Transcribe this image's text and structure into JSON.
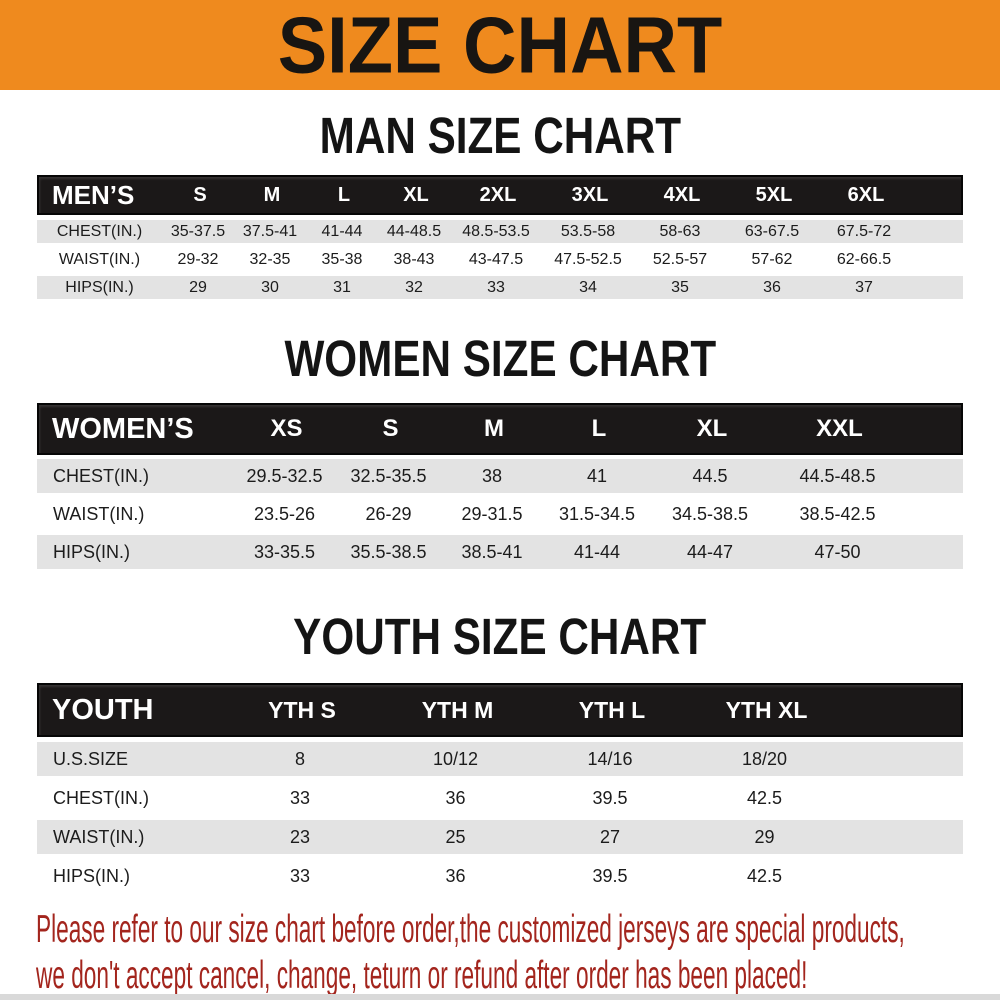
{
  "banner": {
    "title": "SIZE CHART"
  },
  "colors": {
    "banner_bg": "#ef8a1e",
    "bar_bg": "#1b1818",
    "row_alt": "#e3e3e3",
    "footer_text": "#a3251d"
  },
  "sections": [
    {
      "title": "MAN SIZE CHART",
      "table": {
        "header_label": "MEN’S",
        "columns": [
          "S",
          "M",
          "L",
          "XL",
          "2XL",
          "3XL",
          "4XL",
          "5XL",
          "6XL"
        ],
        "rows": [
          {
            "label": "CHEST(IN.)",
            "values": [
              "35-37.5",
              "37.5-41",
              "41-44",
              "44-48.5",
              "48.5-53.5",
              "53.5-58",
              "58-63",
              "63-67.5",
              "67.5-72"
            ]
          },
          {
            "label": "WAIST(IN.)",
            "values": [
              "29-32",
              "32-35",
              "35-38",
              "38-43",
              "43-47.5",
              "47.5-52.5",
              "52.5-57",
              "57-62",
              "62-66.5"
            ]
          },
          {
            "label": "HIPS(IN.)",
            "values": [
              "29",
              "30",
              "31",
              "32",
              "33",
              "34",
              "35",
              "36",
              "37"
            ]
          }
        ]
      }
    },
    {
      "title": "WOMEN SIZE CHART",
      "table": {
        "header_label": "WOMEN’S",
        "columns": [
          "XS",
          "S",
          "M",
          "L",
          "XL",
          "XXL"
        ],
        "rows": [
          {
            "label": "CHEST(IN.)",
            "values": [
              "29.5-32.5",
              "32.5-35.5",
              "38",
              "41",
              "44.5",
              "44.5-48.5"
            ]
          },
          {
            "label": "WAIST(IN.)",
            "values": [
              "23.5-26",
              "26-29",
              "29-31.5",
              "31.5-34.5",
              "34.5-38.5",
              "38.5-42.5"
            ]
          },
          {
            "label": "HIPS(IN.)",
            "values": [
              "33-35.5",
              "35.5-38.5",
              "38.5-41",
              "41-44",
              "44-47",
              "47-50"
            ]
          }
        ]
      }
    },
    {
      "title": "YOUTH SIZE CHART",
      "table": {
        "header_label": "YOUTH",
        "columns": [
          "YTH S",
          "YTH M",
          "YTH L",
          "YTH XL"
        ],
        "rows": [
          {
            "label": "U.S.SIZE",
            "values": [
              "8",
              "10/12",
              "14/16",
              "18/20"
            ]
          },
          {
            "label": "CHEST(IN.)",
            "values": [
              "33",
              "36",
              "39.5",
              "42.5"
            ]
          },
          {
            "label": "WAIST(IN.)",
            "values": [
              "23",
              "25",
              "27",
              "29"
            ]
          },
          {
            "label": "HIPS(IN.)",
            "values": [
              "33",
              "36",
              "39.5",
              "42.5"
            ]
          }
        ]
      }
    }
  ],
  "footer": {
    "lines": [
      "Please refer to our size chart before order,the customized jerseys are special products,",
      "we don't accept cancel, change, teturn or refund after order has been placed!"
    ]
  }
}
